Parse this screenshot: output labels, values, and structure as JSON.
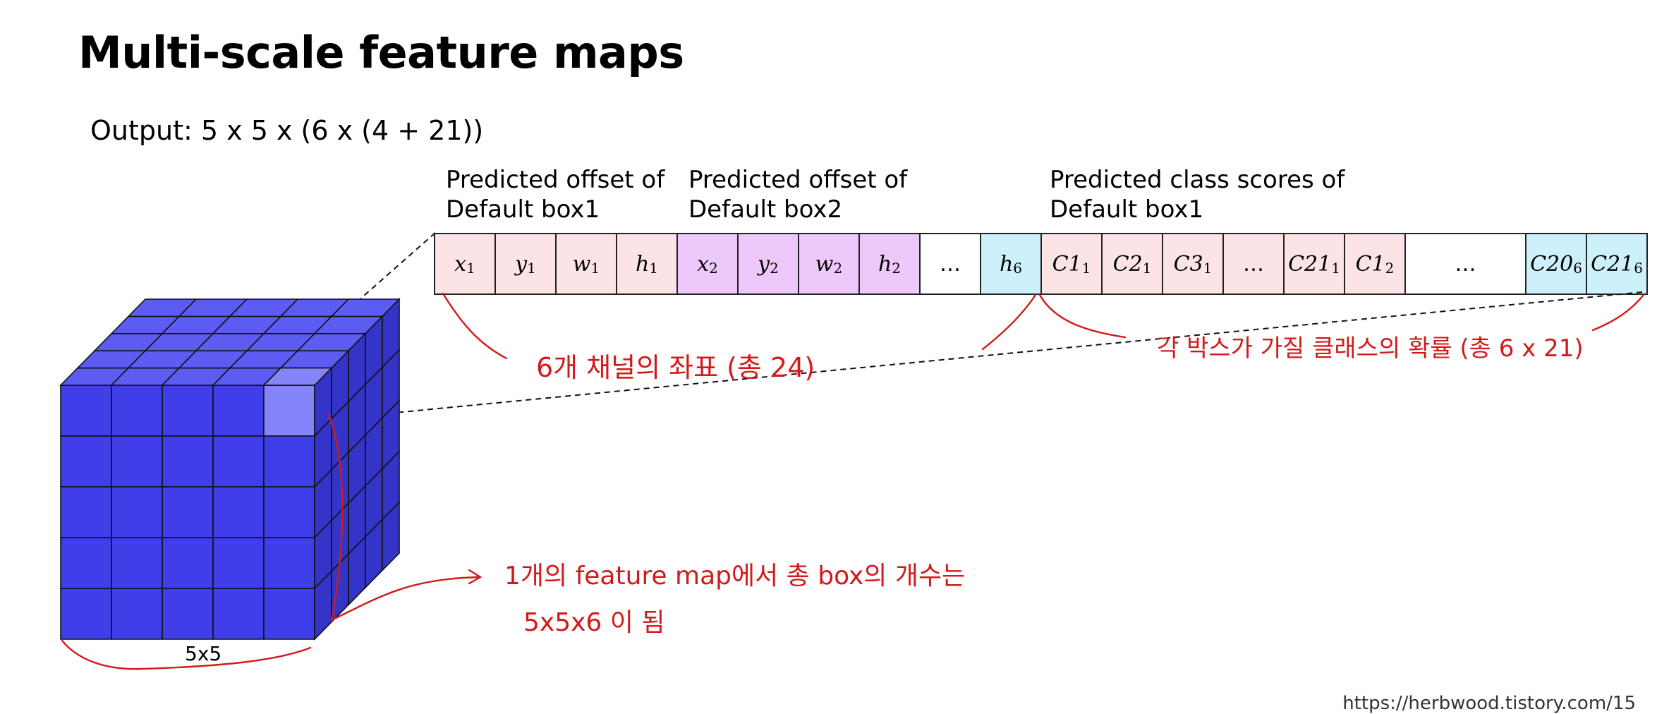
{
  "title": "Multi-scale feature maps",
  "output_formula": "Output: 5 x 5 x (6 x (4 + 21))",
  "headers": {
    "box1_offset": [
      "Predicted offset of",
      "Default box1"
    ],
    "box2_offset": [
      "Predicted offset of",
      "Default box2"
    ],
    "box1_class": [
      "Predicted class scores of",
      "Default box1"
    ]
  },
  "cells": [
    {
      "base": "x",
      "sub": "1",
      "color": "pink"
    },
    {
      "base": "y",
      "sub": "1",
      "color": "pink"
    },
    {
      "base": "w",
      "sub": "1",
      "color": "pink"
    },
    {
      "base": "h",
      "sub": "1",
      "color": "pink"
    },
    {
      "base": "x",
      "sub": "2",
      "color": "purple"
    },
    {
      "base": "y",
      "sub": "2",
      "color": "purple"
    },
    {
      "base": "w",
      "sub": "2",
      "color": "purple"
    },
    {
      "base": "h",
      "sub": "2",
      "color": "purple"
    },
    {
      "base": "…",
      "sub": "",
      "color": "white"
    },
    {
      "base": "h",
      "sub": "6",
      "color": "cyan"
    },
    {
      "base": "C1",
      "sub": "1",
      "color": "pink"
    },
    {
      "base": "C2",
      "sub": "1",
      "color": "pink"
    },
    {
      "base": "C3",
      "sub": "1",
      "color": "pink"
    },
    {
      "base": "…",
      "sub": "",
      "color": "pink"
    },
    {
      "base": "C21",
      "sub": "1",
      "color": "pink"
    },
    {
      "base": "C1",
      "sub": "2",
      "color": "pink"
    },
    {
      "base": "…",
      "sub": "",
      "color": "white"
    },
    {
      "base": "C20",
      "sub": "6",
      "color": "cyan"
    },
    {
      "base": "C21",
      "sub": "6",
      "color": "cyan"
    }
  ],
  "cube_label": "5x5",
  "handwritten_notes": {
    "coords": "6개 채널의 좌표 (총 24)",
    "class_probs": "각 박스가 가질 클래스의 확률 (총 6 x 21)",
    "box_count_line1": "1개의 feature map에서 총 box의 개수는",
    "box_count_line2": "5x5x6 이 됨"
  },
  "credit": "https://herbwood.tistory.com/15",
  "colors": {
    "pink": "#fce4e6",
    "purple": "#ecc9fa",
    "cyan": "#cdf1fb",
    "cube_front": "#3f3fe9",
    "cube_top": "#5c5cf3",
    "cube_side": "#3434c8",
    "highlight_cell": "#8585fa",
    "annotation_red": "#d21a1a"
  }
}
